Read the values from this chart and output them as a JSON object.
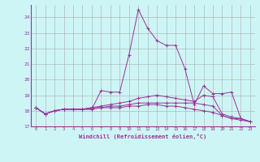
{
  "xlabel": "Windchill (Refroidissement éolien,°C)",
  "background_color": "#cef5f5",
  "grid_color": "#aaaaaa",
  "line_color": "#993399",
  "xlim": [
    -0.5,
    23.5
  ],
  "ylim": [
    17.0,
    24.8
  ],
  "yticks": [
    17,
    18,
    19,
    20,
    21,
    22,
    23,
    24
  ],
  "xticks": [
    0,
    1,
    2,
    3,
    4,
    5,
    6,
    7,
    8,
    9,
    10,
    11,
    12,
    13,
    14,
    15,
    16,
    17,
    18,
    19,
    20,
    21,
    22,
    23
  ],
  "series": [
    {
      "x": [
        0,
        1,
        2,
        3,
        4,
        5,
        6,
        7,
        8,
        9,
        10,
        11,
        12,
        13,
        14,
        15,
        16,
        17,
        18,
        19,
        20,
        21,
        22,
        23
      ],
      "y": [
        18.2,
        17.8,
        18.0,
        18.1,
        18.1,
        18.1,
        18.1,
        19.3,
        19.2,
        19.2,
        21.6,
        24.5,
        23.3,
        22.5,
        22.2,
        22.2,
        20.7,
        18.4,
        19.6,
        19.1,
        19.1,
        19.2,
        17.5,
        17.3
      ]
    },
    {
      "x": [
        0,
        1,
        2,
        3,
        4,
        5,
        6,
        7,
        8,
        9,
        10,
        11,
        12,
        13,
        14,
        15,
        16,
        17,
        18,
        19,
        20,
        21,
        22,
        23
      ],
      "y": [
        18.2,
        17.8,
        18.0,
        18.1,
        18.1,
        18.1,
        18.2,
        18.3,
        18.4,
        18.5,
        18.6,
        18.8,
        18.9,
        19.0,
        18.9,
        18.8,
        18.7,
        18.6,
        19.0,
        18.9,
        17.8,
        17.6,
        17.5,
        17.3
      ]
    },
    {
      "x": [
        0,
        1,
        2,
        3,
        4,
        5,
        6,
        7,
        8,
        9,
        10,
        11,
        12,
        13,
        14,
        15,
        16,
        17,
        18,
        19,
        20,
        21,
        22,
        23
      ],
      "y": [
        18.2,
        17.8,
        18.0,
        18.1,
        18.1,
        18.1,
        18.2,
        18.2,
        18.3,
        18.3,
        18.4,
        18.5,
        18.5,
        18.5,
        18.5,
        18.5,
        18.5,
        18.5,
        18.4,
        18.3,
        17.7,
        17.5,
        17.5,
        17.3
      ]
    },
    {
      "x": [
        0,
        1,
        2,
        3,
        4,
        5,
        6,
        7,
        8,
        9,
        10,
        11,
        12,
        13,
        14,
        15,
        16,
        17,
        18,
        19,
        20,
        21,
        22,
        23
      ],
      "y": [
        18.2,
        17.8,
        18.0,
        18.1,
        18.1,
        18.1,
        18.1,
        18.2,
        18.2,
        18.2,
        18.3,
        18.3,
        18.4,
        18.4,
        18.3,
        18.3,
        18.2,
        18.1,
        18.0,
        17.9,
        17.7,
        17.5,
        17.4,
        17.3
      ]
    }
  ]
}
